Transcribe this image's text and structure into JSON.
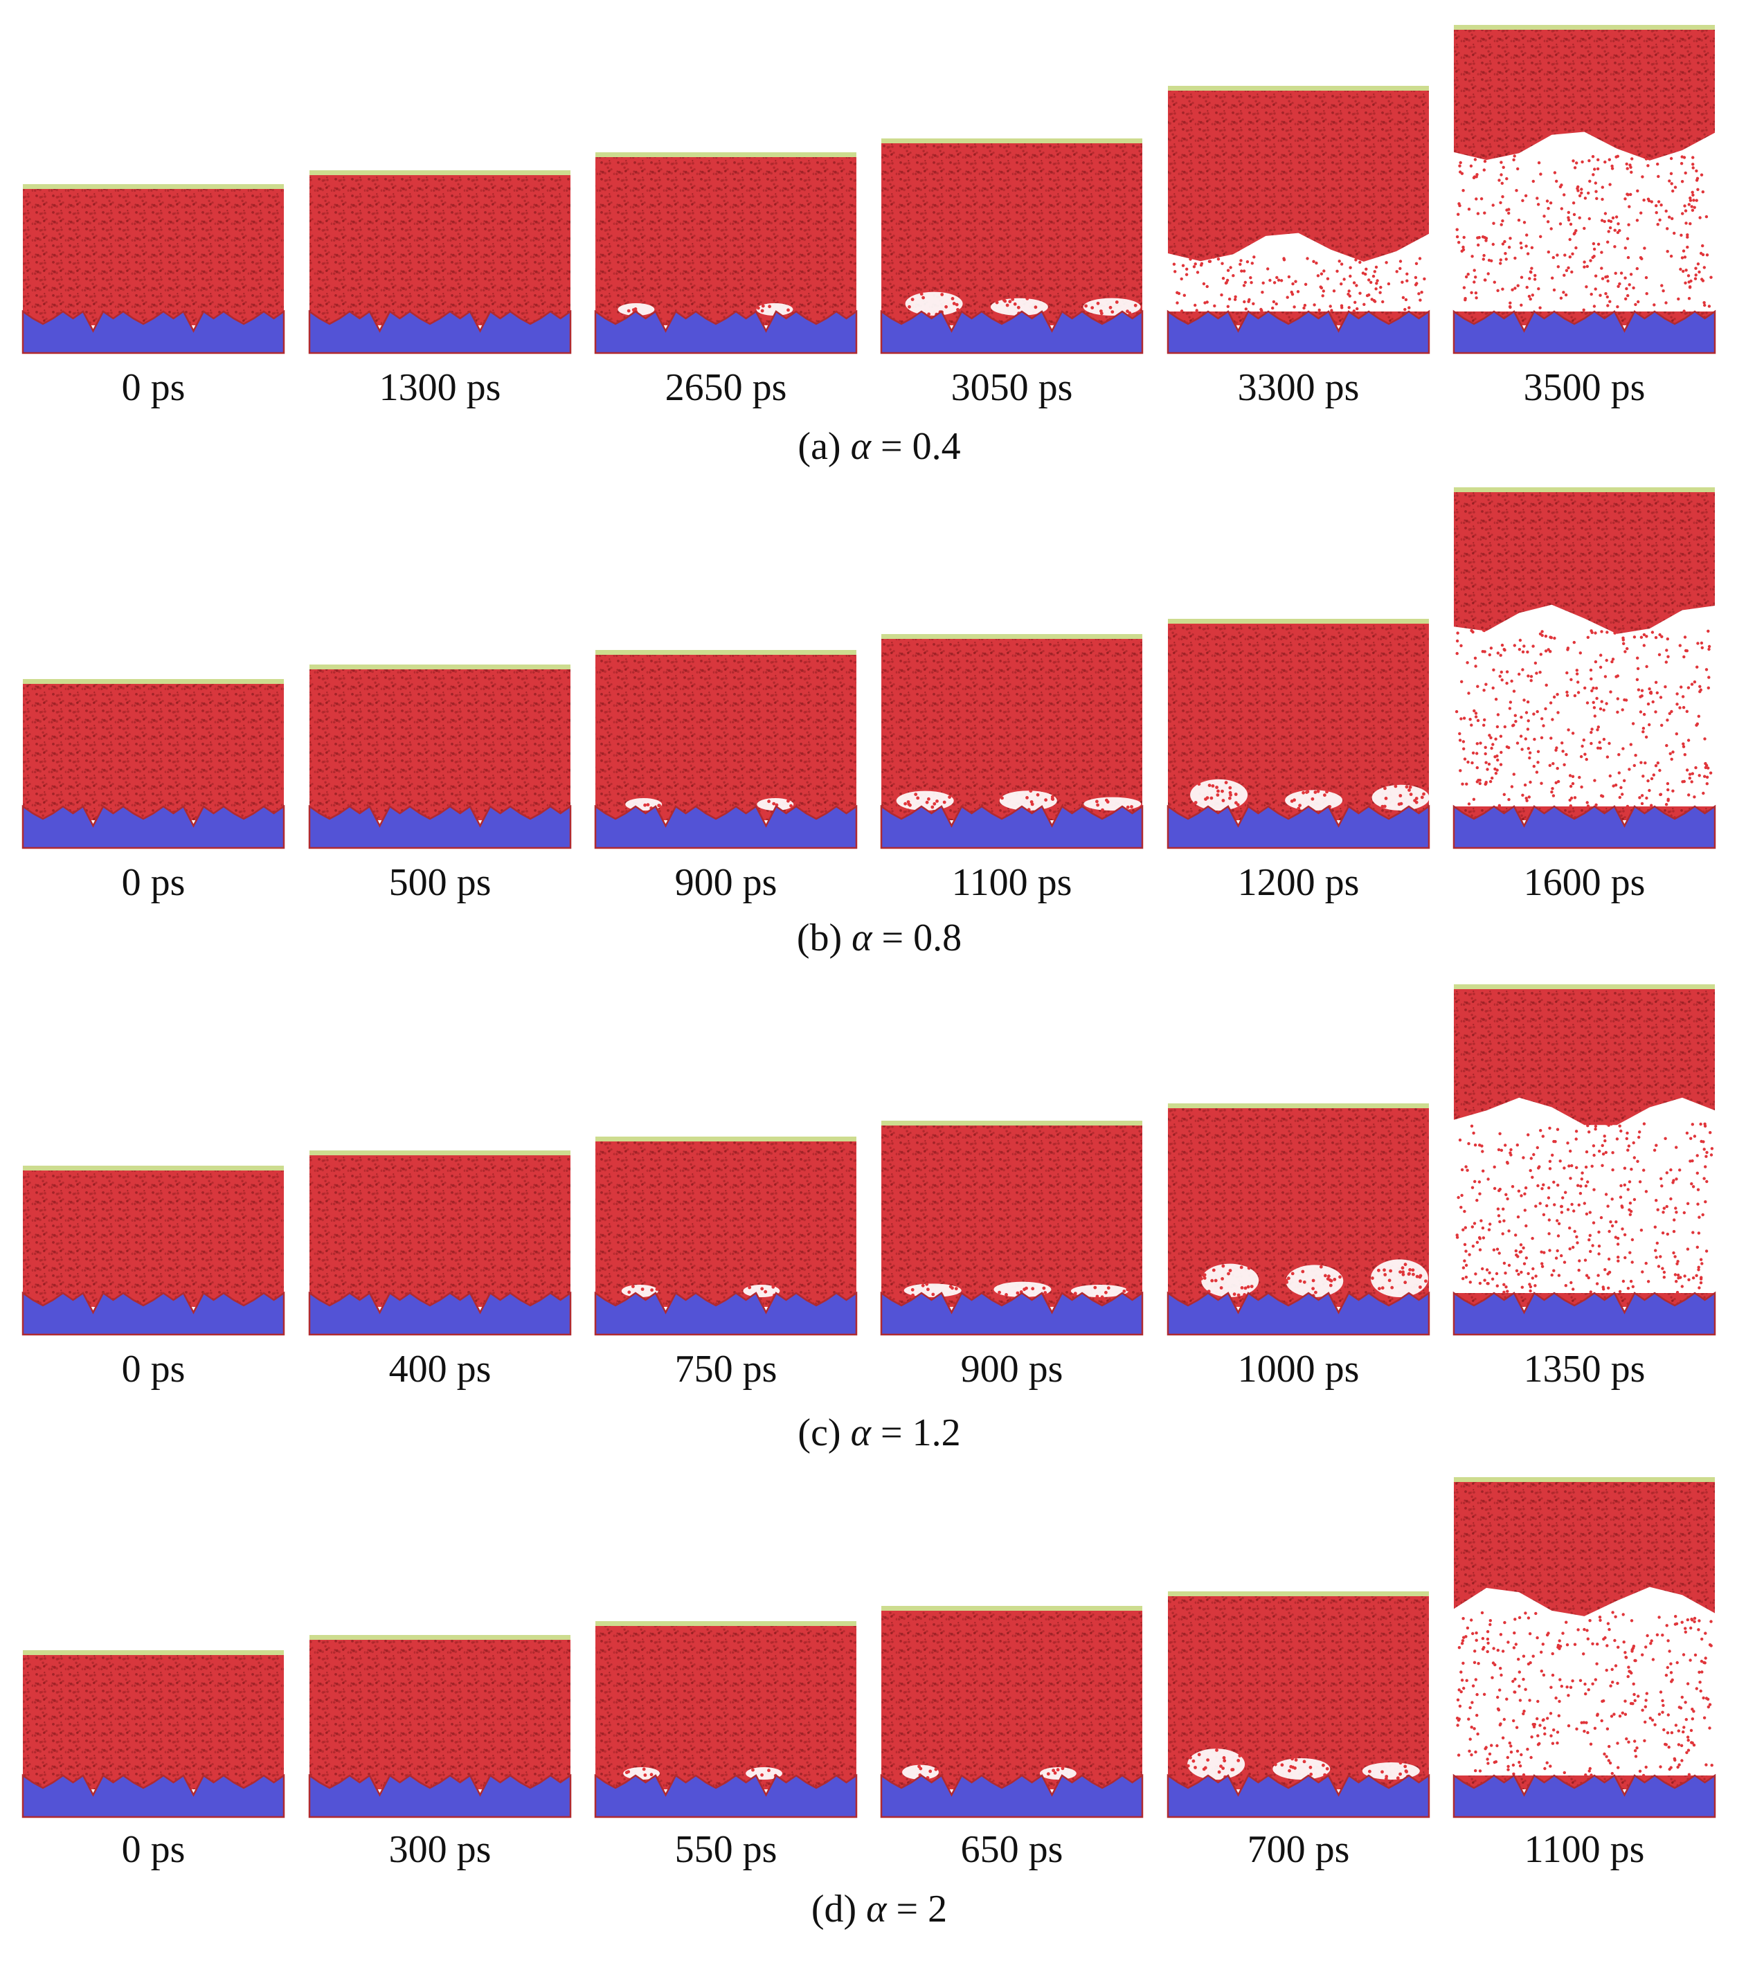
{
  "figure": {
    "colors": {
      "liquid": "#d8373d",
      "liquid_dark": "#8e1b1f",
      "vapor_dot": "#e0353a",
      "solid": "#5353d6",
      "piston": "#cddc8f",
      "background": "#ffffff"
    },
    "rows": [
      {
        "caption_prefix": "(a)",
        "symbol": "α",
        "caption_value": "= 0.4",
        "frames": [
          {
            "time_label": "0 ps",
            "vapor_fraction": 0.0
          },
          {
            "time_label": "1300 ps",
            "vapor_fraction": 0.0
          },
          {
            "time_label": "2650 ps",
            "vapor_fraction": 0.02
          },
          {
            "time_label": "3050 ps",
            "vapor_fraction": 0.12
          },
          {
            "time_label": "3300 ps",
            "vapor_fraction": 0.35
          },
          {
            "time_label": "3500 ps",
            "vapor_fraction": 0.55
          }
        ]
      },
      {
        "caption_prefix": "(b)",
        "symbol": "α",
        "caption_value": "= 0.8",
        "frames": [
          {
            "time_label": "0 ps",
            "vapor_fraction": 0.0
          },
          {
            "time_label": "500 ps",
            "vapor_fraction": 0.0
          },
          {
            "time_label": "900 ps",
            "vapor_fraction": 0.03
          },
          {
            "time_label": "1100 ps",
            "vapor_fraction": 0.1
          },
          {
            "time_label": "1200 ps",
            "vapor_fraction": 0.18
          },
          {
            "time_label": "1600 ps",
            "vapor_fraction": 0.55
          }
        ]
      },
      {
        "caption_prefix": "(c)",
        "symbol": "α",
        "caption_value": "= 1.2",
        "frames": [
          {
            "time_label": "0 ps",
            "vapor_fraction": 0.0
          },
          {
            "time_label": "400 ps",
            "vapor_fraction": 0.0
          },
          {
            "time_label": "750 ps",
            "vapor_fraction": 0.03
          },
          {
            "time_label": "900 ps",
            "vapor_fraction": 0.1
          },
          {
            "time_label": "1000 ps",
            "vapor_fraction": 0.2
          },
          {
            "time_label": "1350 ps",
            "vapor_fraction": 0.55
          }
        ]
      },
      {
        "caption_prefix": "(d)",
        "symbol": "α",
        "caption_value": "= 2",
        "frames": [
          {
            "time_label": "0 ps",
            "vapor_fraction": 0.0
          },
          {
            "time_label": "300 ps",
            "vapor_fraction": 0.0
          },
          {
            "time_label": "550 ps",
            "vapor_fraction": 0.03
          },
          {
            "time_label": "650 ps",
            "vapor_fraction": 0.08
          },
          {
            "time_label": "700 ps",
            "vapor_fraction": 0.15
          },
          {
            "time_label": "1100 ps",
            "vapor_fraction": 0.55
          }
        ]
      }
    ]
  }
}
